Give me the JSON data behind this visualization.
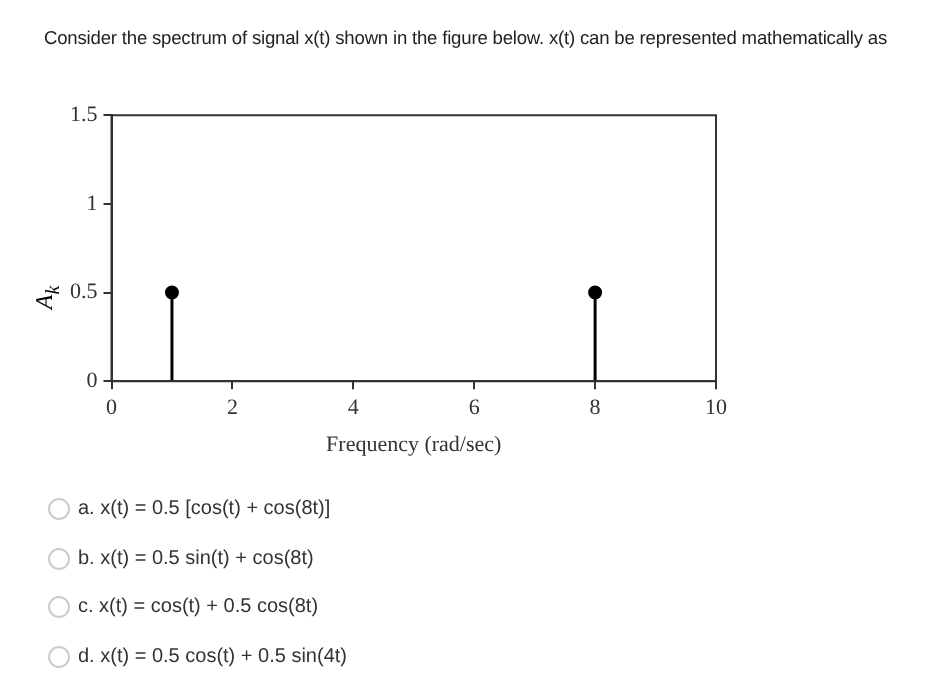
{
  "chart_data": {
    "type": "lollipop",
    "title": "Consider the spectrum of signal x(t) shown in the figure below. x(t) can be represented mathematically as",
    "xlabel": "Frequency (rad/sec)",
    "ylabel": "A$_{k}$",
    "x": [
      1,
      8
    ],
    "series": [
      {
        "color": "#000000",
        "values": [
          0.5,
          0.5
        ]
      }
    ],
    "xlim": [
      0,
      10
    ],
    "xticks": [
      0,
      2,
      4,
      6,
      8,
      10
    ],
    "ylim": [
      0,
      1.5
    ],
    "yticks": [
      0,
      0.5,
      1,
      1.5
    ],
    "grid": false,
    "legend": false,
    "marker": "circle",
    "annotations": [
      "a. x(t) = 0.5 [cos(t) + cos(8t)]",
      "b. x(t) = 0.5 sin(t) + cos(8t)",
      "c. x(t) = cos(t) + 0.5 cos(8t)",
      "d. x(t) = 0.5 cos(t) + 0.5 sin(4t)"
    ]
  }
}
